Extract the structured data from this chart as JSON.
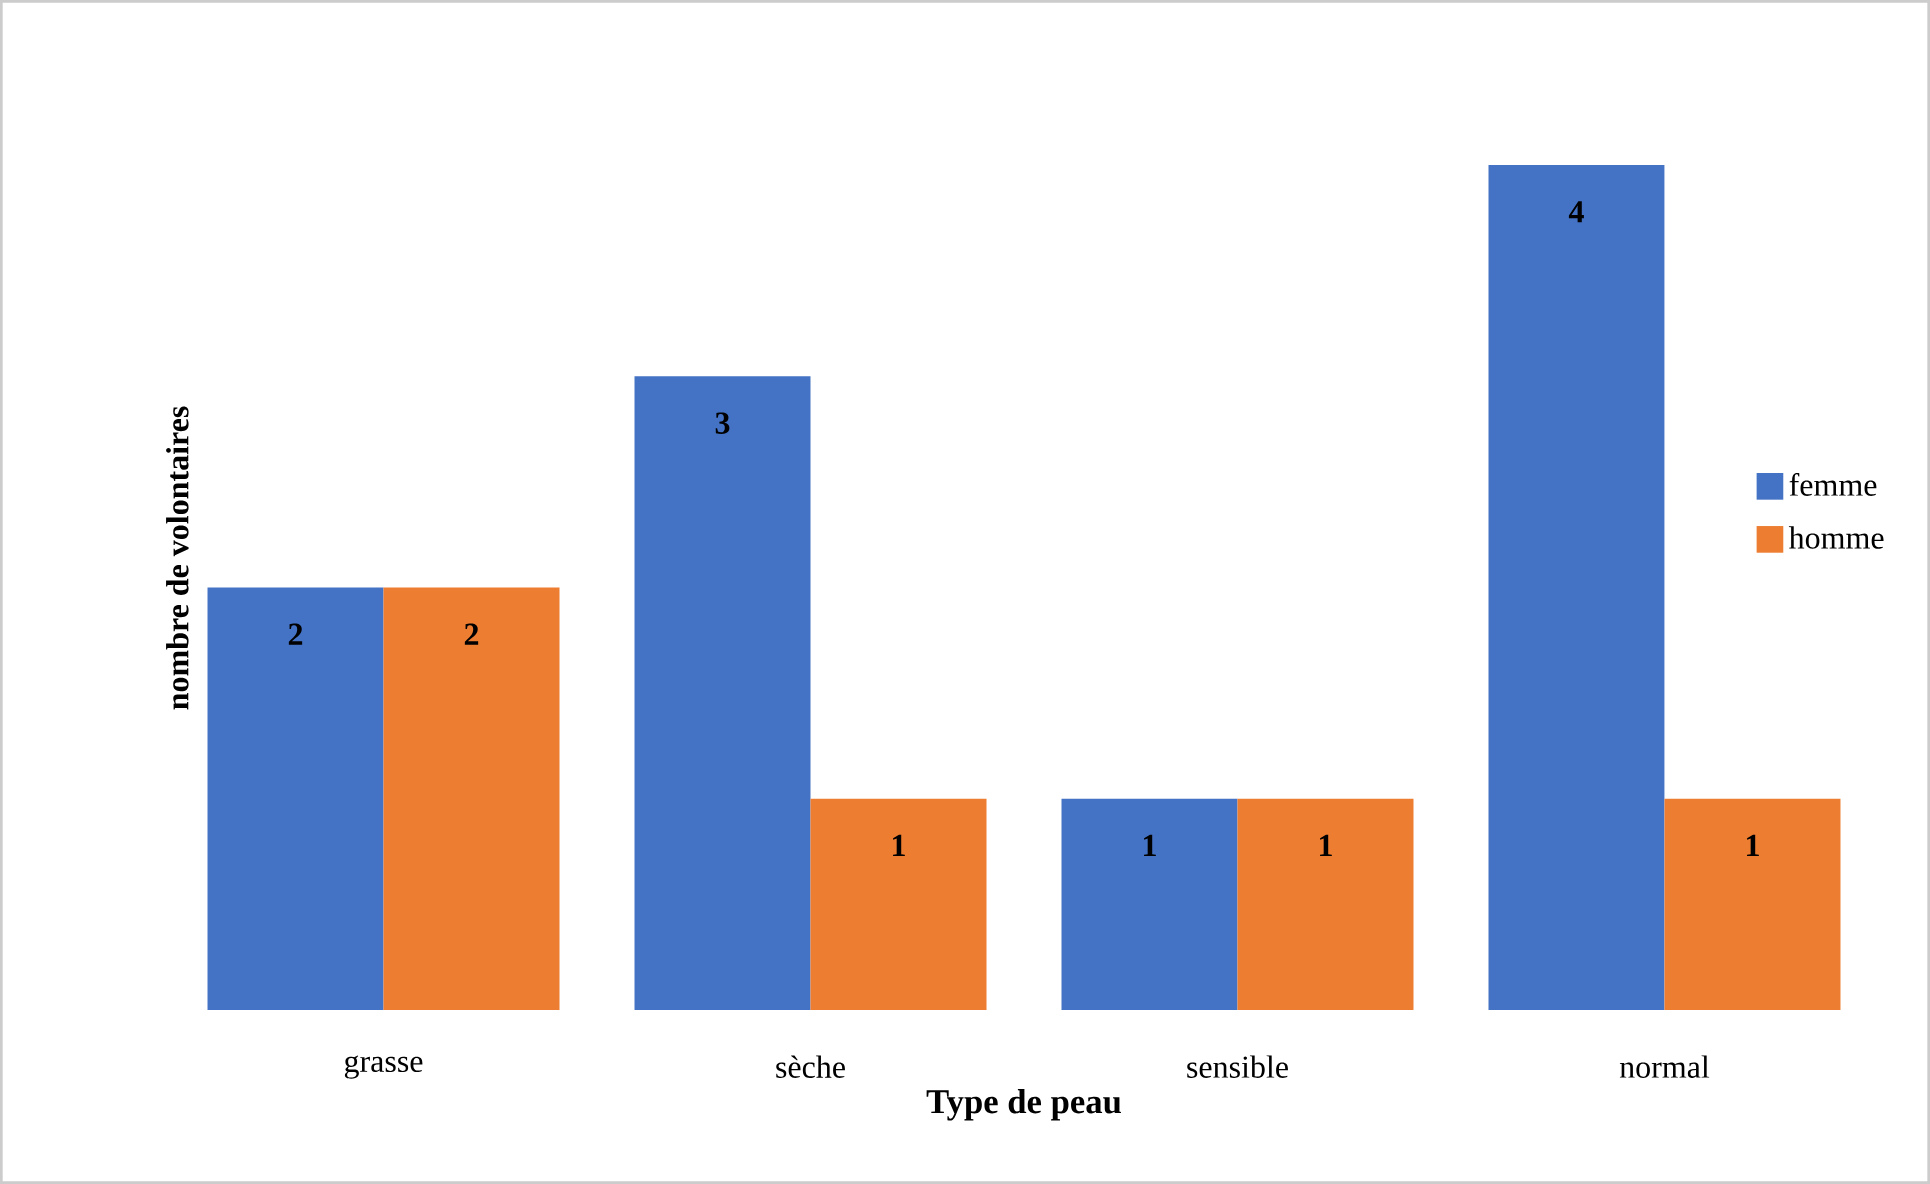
{
  "chart_data": {
    "type": "bar",
    "xlabel": "Type de peau",
    "ylabel": "nombre de volontaires",
    "categories": [
      "grasse",
      "sèche",
      "sensible",
      "normal"
    ],
    "series": [
      {
        "name": "femme",
        "color": "#4472c4",
        "values": [
          2,
          3,
          1,
          4
        ]
      },
      {
        "name": "homme",
        "color": "#ed7d31",
        "values": [
          2,
          1,
          1,
          1
        ]
      }
    ],
    "data_labels": true,
    "legend": "right"
  }
}
